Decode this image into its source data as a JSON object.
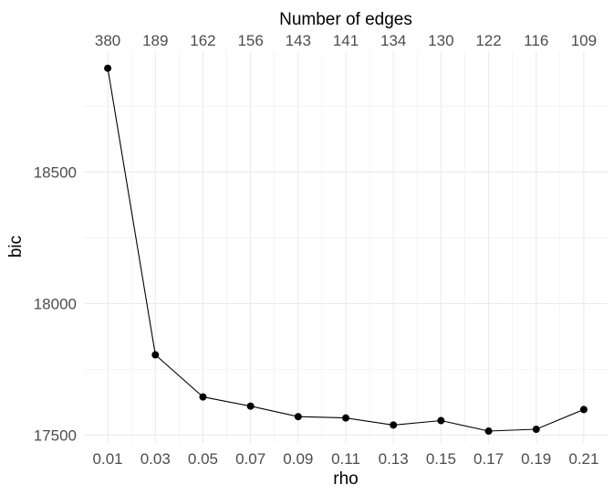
{
  "chart_data": {
    "type": "line",
    "xlabel": "rho",
    "ylabel": "bic",
    "top_axis_label": "Number of edges",
    "x": [
      0.01,
      0.03,
      0.05,
      0.07,
      0.09,
      0.11,
      0.13,
      0.15,
      0.17,
      0.19,
      0.21
    ],
    "x_tick_labels": [
      "0.01",
      "0.03",
      "0.05",
      "0.07",
      "0.09",
      "0.11",
      "0.13",
      "0.15",
      "0.17",
      "0.19",
      "0.21"
    ],
    "top_tick_labels": [
      "380",
      "189",
      "162",
      "156",
      "143",
      "141",
      "134",
      "130",
      "122",
      "116",
      "109"
    ],
    "series": [
      {
        "values": [
          18895,
          17805,
          17645,
          17610,
          17570,
          17565,
          17538,
          17555,
          17515,
          17522,
          17597
        ]
      }
    ],
    "y_ticks": [
      17500,
      18000,
      18500
    ],
    "y_tick_labels": [
      "17500",
      "18000",
      "18500"
    ],
    "xlim": [
      0.0,
      0.22
    ],
    "ylim": [
      17470,
      18960
    ],
    "grid": true,
    "colors": {
      "line": "#000000",
      "points": "#000000",
      "grid": "#ebebeb",
      "tick_text": "#4d4d4d"
    }
  }
}
